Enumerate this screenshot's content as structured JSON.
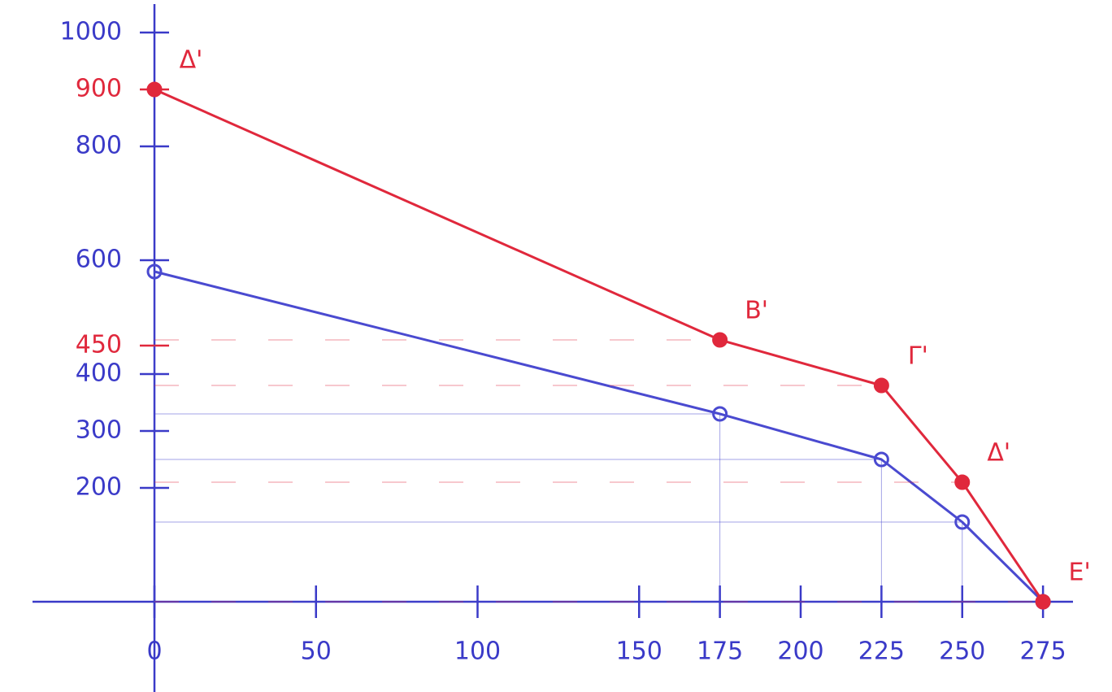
{
  "chart_data": {
    "type": "line",
    "x": [
      0,
      175,
      225,
      250,
      275
    ],
    "series": [
      {
        "color": "#4a4ad0",
        "values": [
          580,
          330,
          250,
          140,
          0
        ]
      },
      {
        "color": "#e0283c",
        "values": [
          900,
          460,
          380,
          210,
          0
        ],
        "point_labels": [
          "Δ'",
          "B'",
          "Γ'",
          "Δ'",
          "E'"
        ]
      }
    ],
    "xlim": [
      0,
      280
    ],
    "ylim": [
      0,
      1000
    ],
    "xticks": [
      0,
      50,
      100,
      150,
      175,
      200,
      225,
      250,
      275
    ],
    "yticks": [
      200,
      300,
      400,
      450,
      600,
      800,
      900,
      1000
    ],
    "ytick_colors": [
      "#3a3ac8",
      "#3a3ac8",
      "#3a3ac8",
      "#e0283c",
      "#3a3ac8",
      "#3a3ac8",
      "#e0283c",
      "#3a3ac8"
    ],
    "axis_color": "#3a3ac8",
    "grid": false
  }
}
